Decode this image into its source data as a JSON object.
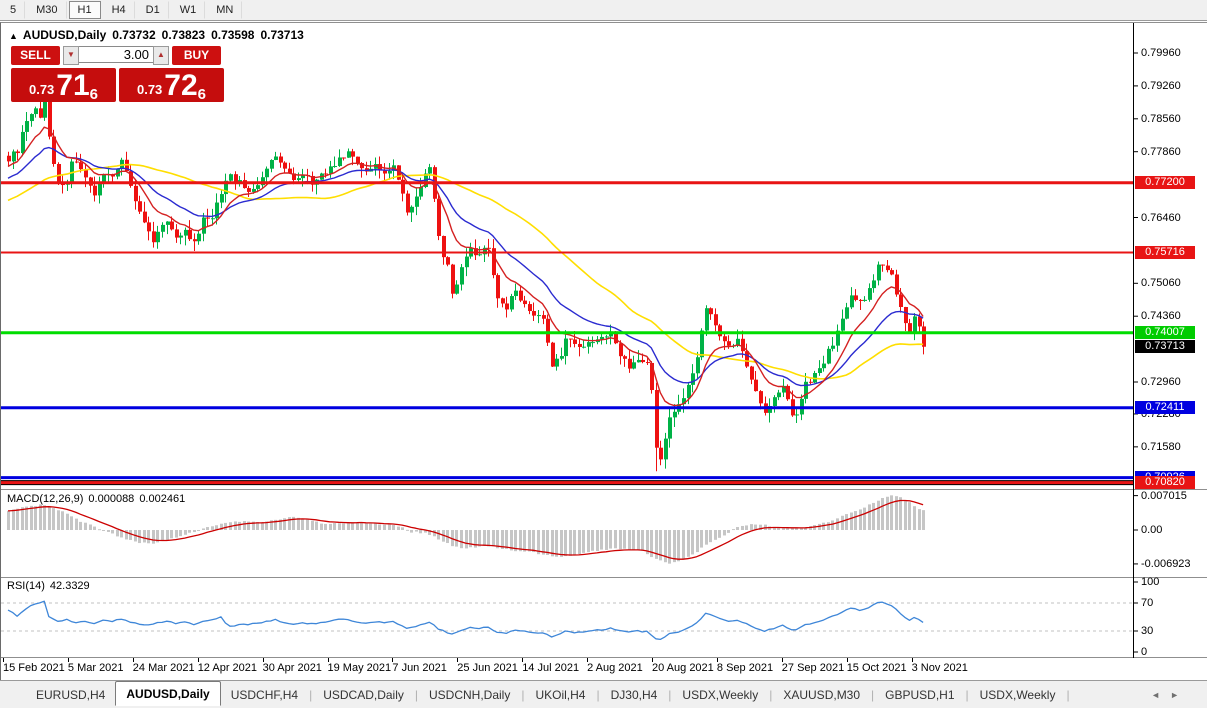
{
  "toolbar": {
    "timeframes": [
      {
        "label": "5",
        "active": false
      },
      {
        "label": "M30",
        "active": false
      },
      {
        "label": "H1",
        "active": true
      },
      {
        "label": "H4",
        "active": false
      },
      {
        "label": "D1",
        "active": false
      },
      {
        "label": "W1",
        "active": false
      },
      {
        "label": "MN",
        "active": false
      }
    ]
  },
  "title": {
    "collapse_arrow": "▲",
    "symbol": "AUDUSD,Daily",
    "open": "0.73732",
    "high": "0.73823",
    "low": "0.73598",
    "close": "0.73713"
  },
  "trade_panel": {
    "sell_label": "SELL",
    "buy_label": "BUY",
    "volume": "3.00",
    "spin_down": "▼",
    "spin_up": "▲",
    "sell_price_small": "0.73",
    "sell_price_big": "71",
    "sell_price_sup": "6",
    "buy_price_small": "0.73",
    "buy_price_big": "72",
    "buy_price_sup": "6"
  },
  "price_axis": {
    "ticks": [
      {
        "text": "0.79960",
        "price": 0.7996
      },
      {
        "text": "0.79260",
        "price": 0.7926
      },
      {
        "text": "0.78560",
        "price": 0.7856
      },
      {
        "text": "0.77860",
        "price": 0.7786
      },
      {
        "text": "0.76460",
        "price": 0.7646
      },
      {
        "text": "0.75060",
        "price": 0.7506
      },
      {
        "text": "0.74360",
        "price": 0.7436
      },
      {
        "text": "0.72960",
        "price": 0.7296
      },
      {
        "text": "0.72280",
        "price": 0.7228
      },
      {
        "text": "0.71580",
        "price": 0.7158
      }
    ],
    "boxes": [
      {
        "text": "0.77200",
        "price": 0.772,
        "bg": "#e81414",
        "fg": "#ffffff"
      },
      {
        "text": "0.75716",
        "price": 0.75716,
        "bg": "#e81414",
        "fg": "#ffffff"
      },
      {
        "text": "0.74007",
        "price": 0.74007,
        "bg": "#00cc00",
        "fg": "#ffffff"
      },
      {
        "text": "0.73713",
        "price": 0.73713,
        "bg": "#000000",
        "fg": "#ffffff"
      },
      {
        "text": "0.72411",
        "price": 0.72411,
        "bg": "#0000e0",
        "fg": "#ffffff"
      },
      {
        "text": "0.70926",
        "price": 0.70926,
        "bg": "#0000e0",
        "fg": "#ffffff"
      },
      {
        "text": "0.70820",
        "price": 0.7082,
        "bg": "#e81414",
        "fg": "#ffffff"
      }
    ]
  },
  "macd_panel": {
    "label": "MACD(12,26,9)",
    "value_main": "0.000088",
    "value_signal": "0.002461",
    "ticks": [
      {
        "text": "0.007015",
        "value": 0.007015
      },
      {
        "text": "0.00",
        "value": 0
      },
      {
        "text": "-0.006923",
        "value": -0.006923
      }
    ]
  },
  "rsi_panel": {
    "label": "RSI(14)",
    "value": "42.3329",
    "ticks": [
      {
        "text": "100",
        "value": 100
      },
      {
        "text": "70",
        "value": 70
      },
      {
        "text": "30",
        "value": 30
      },
      {
        "text": "0",
        "value": 0
      }
    ]
  },
  "date_axis": [
    "15 Feb 2021",
    "5 Mar 2021",
    "24 Mar 2021",
    "12 Apr 2021",
    "30 Apr 2021",
    "19 May 2021",
    "7 Jun 2021",
    "25 Jun 2021",
    "14 Jul 2021",
    "2 Aug 2021",
    "20 Aug 2021",
    "8 Sep 2021",
    "27 Sep 2021",
    "15 Oct 2021",
    "3 Nov 2021"
  ],
  "tabs": {
    "items": [
      {
        "label": "EURUSD,H4",
        "active": false
      },
      {
        "label": "AUDUSD,Daily",
        "active": true
      },
      {
        "label": "USDCHF,H4",
        "active": false
      },
      {
        "label": "USDCAD,Daily",
        "active": false
      },
      {
        "label": "USDCNH,Daily",
        "active": false
      },
      {
        "label": "UKOil,H4",
        "active": false
      },
      {
        "label": "DJ30,H4",
        "active": false
      },
      {
        "label": "USDX,Weekly",
        "active": false
      },
      {
        "label": "XAUUSD,M30",
        "active": false
      },
      {
        "label": "GBPUSD,H1",
        "active": false
      },
      {
        "label": "USDX,Weekly",
        "active": false
      }
    ],
    "scroll_left": "◄",
    "scroll_right": "►"
  },
  "chart_data": {
    "type": "candlestick",
    "title": "AUDUSD,Daily",
    "bars": 203,
    "current_ohlc": {
      "open": 0.73732,
      "high": 0.73823,
      "low": 0.73598,
      "close": 0.73713
    },
    "colors": {
      "up": "#00b246",
      "down": "#ee1111",
      "ma_fast": "#d42121",
      "ma_mid": "#2b2bd0",
      "ma_slow": "#ffde00",
      "macd_hist": "#c6c6c6",
      "macd_signal": "#cc0000",
      "rsi": "#3e86d8",
      "level_dashed": "#c0c0c0"
    },
    "hlines": [
      {
        "price": 0.772,
        "color": "#e81414",
        "width": 3
      },
      {
        "price": 0.75716,
        "color": "#e81414",
        "width": 2
      },
      {
        "price": 0.74007,
        "color": "#00dd00",
        "width": 3
      },
      {
        "price": 0.72411,
        "color": "#0000e0",
        "width": 3
      },
      {
        "price": 0.70926,
        "color": "#0000e0",
        "width": 3
      },
      {
        "price": 0.7082,
        "color": "#e81414",
        "width": 3,
        "edge": "#000000"
      }
    ],
    "ma_periods": {
      "fast": 10,
      "mid": 22,
      "slow": 44
    },
    "close_path": [
      [
        0,
        0.777
      ],
      [
        2,
        0.779
      ],
      [
        4,
        0.7855
      ],
      [
        6,
        0.788
      ],
      [
        7,
        0.7865
      ],
      [
        8,
        0.7893
      ],
      [
        9,
        0.7825
      ],
      [
        10,
        0.776
      ],
      [
        11,
        0.7715
      ],
      [
        13,
        0.7725
      ],
      [
        14,
        0.7765
      ],
      [
        15,
        0.777
      ],
      [
        17,
        0.7735
      ],
      [
        19,
        0.769
      ],
      [
        21,
        0.7745
      ],
      [
        23,
        0.773
      ],
      [
        25,
        0.7765
      ],
      [
        26,
        0.774
      ],
      [
        28,
        0.768
      ],
      [
        30,
        0.7635
      ],
      [
        32,
        0.759
      ],
      [
        33,
        0.7615
      ],
      [
        35,
        0.764
      ],
      [
        37,
        0.76
      ],
      [
        39,
        0.7615
      ],
      [
        41,
        0.759
      ],
      [
        43,
        0.764
      ],
      [
        45,
        0.765
      ],
      [
        47,
        0.77
      ],
      [
        49,
        0.7735
      ],
      [
        51,
        0.772
      ],
      [
        53,
        0.77
      ],
      [
        55,
        0.7715
      ],
      [
        57,
        0.7755
      ],
      [
        59,
        0.778
      ],
      [
        61,
        0.7755
      ],
      [
        63,
        0.7725
      ],
      [
        65,
        0.774
      ],
      [
        67,
        0.772
      ],
      [
        69,
        0.7735
      ],
      [
        71,
        0.775
      ],
      [
        73,
        0.777
      ],
      [
        75,
        0.7785
      ],
      [
        77,
        0.776
      ],
      [
        79,
        0.774
      ],
      [
        81,
        0.7755
      ],
      [
        83,
        0.7745
      ],
      [
        85,
        0.775
      ],
      [
        87,
        0.77
      ],
      [
        88,
        0.766
      ],
      [
        90,
        0.7685
      ],
      [
        92,
        0.774
      ],
      [
        93,
        0.7755
      ],
      [
        95,
        0.761
      ],
      [
        96,
        0.756
      ],
      [
        97,
        0.754
      ],
      [
        98,
        0.748
      ],
      [
        100,
        0.754
      ],
      [
        102,
        0.7575
      ],
      [
        104,
        0.757
      ],
      [
        106,
        0.758
      ],
      [
        108,
        0.747
      ],
      [
        110,
        0.7455
      ],
      [
        112,
        0.749
      ],
      [
        114,
        0.746
      ],
      [
        116,
        0.744
      ],
      [
        118,
        0.7425
      ],
      [
        120,
        0.733
      ],
      [
        122,
        0.7355
      ],
      [
        123,
        0.739
      ],
      [
        125,
        0.737
      ],
      [
        127,
        0.7365
      ],
      [
        129,
        0.7385
      ],
      [
        131,
        0.739
      ],
      [
        133,
        0.74
      ],
      [
        135,
        0.7355
      ],
      [
        137,
        0.733
      ],
      [
        139,
        0.7345
      ],
      [
        141,
        0.734
      ],
      [
        142,
        0.728
      ],
      [
        143,
        0.715
      ],
      [
        144,
        0.7135
      ],
      [
        145,
        0.718
      ],
      [
        146,
        0.7225
      ],
      [
        148,
        0.7245
      ],
      [
        150,
        0.729
      ],
      [
        151,
        0.731
      ],
      [
        153,
        0.74
      ],
      [
        154,
        0.745
      ],
      [
        155,
        0.744
      ],
      [
        157,
        0.74
      ],
      [
        159,
        0.737
      ],
      [
        161,
        0.7385
      ],
      [
        163,
        0.733
      ],
      [
        165,
        0.727
      ],
      [
        167,
        0.723
      ],
      [
        169,
        0.726
      ],
      [
        171,
        0.729
      ],
      [
        173,
        0.723
      ],
      [
        174,
        0.722
      ],
      [
        176,
        0.729
      ],
      [
        178,
        0.731
      ],
      [
        180,
        0.734
      ],
      [
        182,
        0.738
      ],
      [
        184,
        0.743
      ],
      [
        186,
        0.748
      ],
      [
        188,
        0.7465
      ],
      [
        190,
        0.749
      ],
      [
        192,
        0.754
      ],
      [
        193,
        0.7545
      ],
      [
        195,
        0.752
      ],
      [
        197,
        0.745
      ],
      [
        198,
        0.7415
      ],
      [
        199,
        0.74
      ],
      [
        200,
        0.743
      ],
      [
        201,
        0.742
      ],
      [
        202,
        0.7371
      ]
    ],
    "wick_overrides": [
      [
        143,
        0.7106
      ]
    ],
    "macd_path": [
      [
        0,
        0.0038
      ],
      [
        4,
        0.0048
      ],
      [
        8,
        0.0052
      ],
      [
        12,
        0.0038
      ],
      [
        16,
        0.0018
      ],
      [
        20,
        0.0002
      ],
      [
        24,
        -0.0012
      ],
      [
        28,
        -0.0024
      ],
      [
        32,
        -0.0029
      ],
      [
        36,
        -0.0018
      ],
      [
        40,
        -0.0006
      ],
      [
        44,
        0.0006
      ],
      [
        48,
        0.0015
      ],
      [
        52,
        0.0018
      ],
      [
        56,
        0.0016
      ],
      [
        60,
        0.0022
      ],
      [
        63,
        0.0027
      ],
      [
        66,
        0.0022
      ],
      [
        70,
        0.0012
      ],
      [
        74,
        0.0014
      ],
      [
        78,
        0.0015
      ],
      [
        82,
        0.0012
      ],
      [
        86,
        0.0008
      ],
      [
        89,
        -0.0004
      ],
      [
        92,
        -0.0006
      ],
      [
        95,
        -0.0018
      ],
      [
        98,
        -0.0033
      ],
      [
        101,
        -0.0038
      ],
      [
        104,
        -0.0033
      ],
      [
        107,
        -0.0034
      ],
      [
        110,
        -0.004
      ],
      [
        113,
        -0.0043
      ],
      [
        116,
        -0.0046
      ],
      [
        119,
        -0.0052
      ],
      [
        122,
        -0.0054
      ],
      [
        125,
        -0.005
      ],
      [
        128,
        -0.0045
      ],
      [
        131,
        -0.004
      ],
      [
        134,
        -0.0038
      ],
      [
        137,
        -0.004
      ],
      [
        140,
        -0.0042
      ],
      [
        143,
        -0.006
      ],
      [
        146,
        -0.0069
      ],
      [
        149,
        -0.006
      ],
      [
        152,
        -0.0044
      ],
      [
        155,
        -0.0024
      ],
      [
        158,
        -0.001
      ],
      [
        161,
        0.0006
      ],
      [
        164,
        0.0012
      ],
      [
        167,
        0.001
      ],
      [
        170,
        0.0006
      ],
      [
        173,
        0.0004
      ],
      [
        176,
        0.0006
      ],
      [
        179,
        0.0012
      ],
      [
        182,
        0.002
      ],
      [
        185,
        0.0032
      ],
      [
        188,
        0.0042
      ],
      [
        191,
        0.0056
      ],
      [
        193,
        0.0066
      ],
      [
        195,
        0.007
      ],
      [
        197,
        0.0066
      ],
      [
        199,
        0.0056
      ],
      [
        201,
        0.0044
      ],
      [
        202,
        0.004
      ]
    ],
    "macd_scale": {
      "max": 0.007015,
      "min": -0.006923
    },
    "rsi_path": [
      [
        0,
        60
      ],
      [
        2,
        52
      ],
      [
        3,
        56
      ],
      [
        5,
        66
      ],
      [
        7,
        70
      ],
      [
        8,
        72
      ],
      [
        9,
        50
      ],
      [
        11,
        44
      ],
      [
        13,
        46
      ],
      [
        15,
        42
      ],
      [
        17,
        44
      ],
      [
        19,
        40
      ],
      [
        21,
        46
      ],
      [
        23,
        44
      ],
      [
        25,
        47
      ],
      [
        27,
        43
      ],
      [
        29,
        40
      ],
      [
        31,
        38
      ],
      [
        33,
        42
      ],
      [
        35,
        44
      ],
      [
        37,
        41
      ],
      [
        39,
        43
      ],
      [
        41,
        39
      ],
      [
        43,
        44
      ],
      [
        45,
        46
      ],
      [
        47,
        50
      ],
      [
        48,
        42
      ],
      [
        49,
        36
      ],
      [
        51,
        40
      ],
      [
        53,
        39
      ],
      [
        55,
        41
      ],
      [
        57,
        44
      ],
      [
        59,
        46
      ],
      [
        61,
        42
      ],
      [
        63,
        40
      ],
      [
        65,
        42
      ],
      [
        67,
        40
      ],
      [
        69,
        42
      ],
      [
        71,
        44
      ],
      [
        73,
        46
      ],
      [
        75,
        47
      ],
      [
        77,
        43
      ],
      [
        79,
        41
      ],
      [
        81,
        43
      ],
      [
        83,
        42
      ],
      [
        85,
        43
      ],
      [
        87,
        38
      ],
      [
        88,
        34
      ],
      [
        90,
        37
      ],
      [
        92,
        41
      ],
      [
        93,
        43
      ],
      [
        95,
        33
      ],
      [
        97,
        28
      ],
      [
        98,
        25
      ],
      [
        100,
        31
      ],
      [
        102,
        35
      ],
      [
        104,
        34
      ],
      [
        106,
        36
      ],
      [
        108,
        28
      ],
      [
        110,
        27
      ],
      [
        112,
        32
      ],
      [
        114,
        30
      ],
      [
        116,
        28
      ],
      [
        118,
        27
      ],
      [
        120,
        22
      ],
      [
        122,
        26
      ],
      [
        123,
        30
      ],
      [
        125,
        28
      ],
      [
        127,
        28
      ],
      [
        129,
        31
      ],
      [
        131,
        32
      ],
      [
        133,
        34
      ],
      [
        135,
        30
      ],
      [
        137,
        28
      ],
      [
        139,
        30
      ],
      [
        141,
        29
      ],
      [
        143,
        19
      ],
      [
        144,
        18
      ],
      [
        145,
        22
      ],
      [
        146,
        26
      ],
      [
        148,
        29
      ],
      [
        150,
        34
      ],
      [
        151,
        37
      ],
      [
        153,
        48
      ],
      [
        154,
        55
      ],
      [
        155,
        53
      ],
      [
        157,
        48
      ],
      [
        159,
        44
      ],
      [
        161,
        46
      ],
      [
        163,
        40
      ],
      [
        165,
        34
      ],
      [
        167,
        30
      ],
      [
        169,
        34
      ],
      [
        171,
        38
      ],
      [
        173,
        32
      ],
      [
        174,
        31
      ],
      [
        176,
        39
      ],
      [
        178,
        42
      ],
      [
        180,
        46
      ],
      [
        182,
        51
      ],
      [
        184,
        57
      ],
      [
        186,
        63
      ],
      [
        188,
        60
      ],
      [
        190,
        64
      ],
      [
        192,
        70
      ],
      [
        193,
        71
      ],
      [
        195,
        67
      ],
      [
        197,
        55
      ],
      [
        198,
        49
      ],
      [
        199,
        46
      ],
      [
        200,
        50
      ],
      [
        201,
        47
      ],
      [
        202,
        42.33
      ]
    ],
    "rsi_levels": [
      70,
      30
    ]
  }
}
